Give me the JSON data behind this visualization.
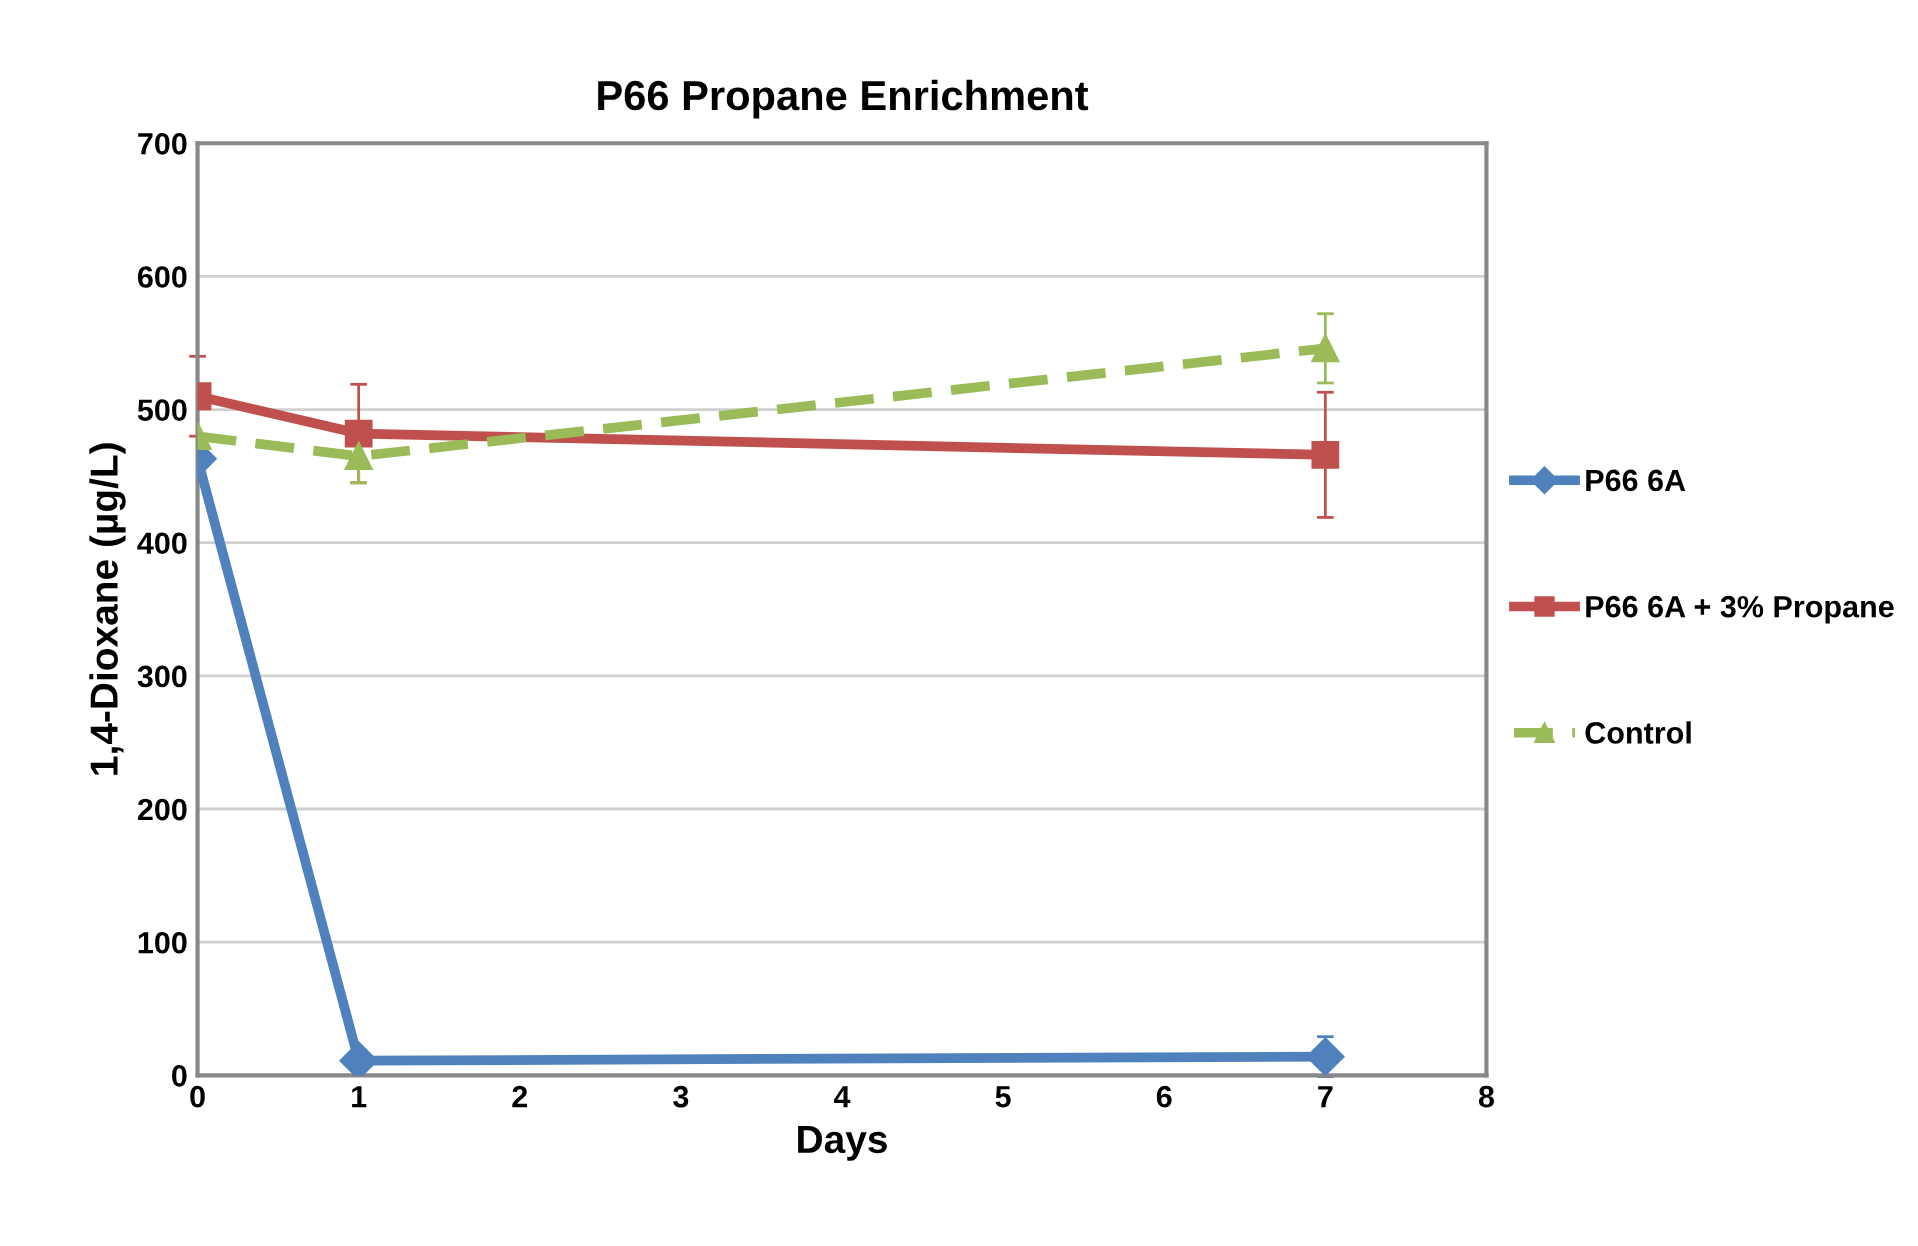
{
  "chart_data": {
    "type": "line",
    "title": "P66 Propane Enrichment",
    "xlabel": "Days",
    "ylabel": "1,4-Dioxane (µg/L)",
    "xlim": [
      0,
      8
    ],
    "xticks": [
      0,
      1,
      2,
      3,
      4,
      5,
      6,
      7,
      8
    ],
    "ylim": [
      0,
      700
    ],
    "yticks": [
      0,
      100,
      200,
      300,
      400,
      500,
      600,
      700
    ],
    "grid": "y",
    "legend": "right",
    "series": [
      {
        "name": "P66 6A",
        "color": "#4f81bd",
        "marker": "diamond",
        "line_style": "solid",
        "x": [
          0,
          1,
          7
        ],
        "values": [
          463,
          11,
          14
        ],
        "errors": [
          null,
          null,
          15
        ]
      },
      {
        "name": "P66 6A + 3% Propane",
        "color": "#c0504d",
        "marker": "square",
        "line_style": "solid",
        "x": [
          0,
          1,
          7
        ],
        "values": [
          510,
          482,
          466
        ],
        "errors": [
          30,
          37,
          47
        ]
      },
      {
        "name": "Control",
        "color": "#9bbb59",
        "marker": "triangle",
        "line_style": "dashed",
        "x": [
          0,
          1,
          7
        ],
        "values": [
          480,
          465,
          546
        ],
        "errors": [
          null,
          20,
          26
        ]
      }
    ]
  }
}
